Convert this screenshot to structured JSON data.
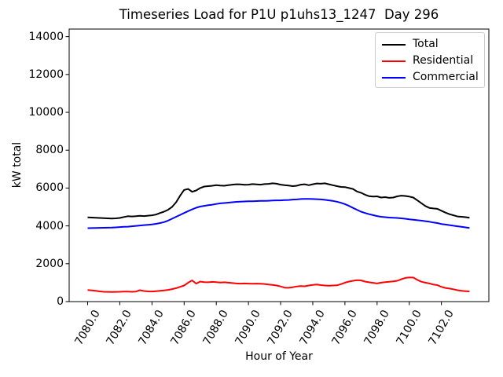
{
  "chart_data": {
    "type": "line",
    "title": "Timeseries Load for P1U p1uhs13_1247  Day 296",
    "xlabel": "Hour of Year",
    "ylabel": "kW total",
    "xlim": [
      7078.85,
      7104.95
    ],
    "ylim": [
      0,
      14400
    ],
    "grid": false,
    "legend_position": "upper right",
    "x_tick_labels": [
      "7080.0",
      "7082.0",
      "7084.0",
      "7086.0",
      "7088.0",
      "7090.0",
      "7092.0",
      "7094.0",
      "7096.0",
      "7098.0",
      "7100.0",
      "7102.0"
    ],
    "x_tick_values": [
      7080,
      7082,
      7084,
      7086,
      7088,
      7090,
      7092,
      7094,
      7096,
      7098,
      7100,
      7102
    ],
    "y_tick_labels": [
      "0",
      "2000",
      "4000",
      "6000",
      "8000",
      "10000",
      "12000",
      "14000"
    ],
    "y_tick_values": [
      0,
      2000,
      4000,
      6000,
      8000,
      10000,
      12000,
      14000
    ],
    "x": [
      7080.0,
      7080.25,
      7080.5,
      7080.75,
      7081.0,
      7081.25,
      7081.5,
      7081.75,
      7082.0,
      7082.25,
      7082.5,
      7082.75,
      7083.0,
      7083.25,
      7083.5,
      7083.75,
      7084.0,
      7084.25,
      7084.5,
      7084.75,
      7085.0,
      7085.25,
      7085.5,
      7085.75,
      7086.0,
      7086.25,
      7086.5,
      7086.75,
      7087.0,
      7087.25,
      7087.5,
      7087.75,
      7088.0,
      7088.25,
      7088.5,
      7088.75,
      7089.0,
      7089.25,
      7089.5,
      7089.75,
      7090.0,
      7090.25,
      7090.5,
      7090.75,
      7091.0,
      7091.25,
      7091.5,
      7091.75,
      7092.0,
      7092.25,
      7092.5,
      7092.75,
      7093.0,
      7093.25,
      7093.5,
      7093.75,
      7094.0,
      7094.25,
      7094.5,
      7094.75,
      7095.0,
      7095.25,
      7095.5,
      7095.75,
      7096.0,
      7096.25,
      7096.5,
      7096.75,
      7097.0,
      7097.25,
      7097.5,
      7097.75,
      7098.0,
      7098.25,
      7098.5,
      7098.75,
      7099.0,
      7099.25,
      7099.5,
      7099.75,
      7100.0,
      7100.25,
      7100.5,
      7100.75,
      7101.0,
      7101.25,
      7101.5,
      7101.75,
      7102.0,
      7102.25,
      7102.5,
      7102.75,
      7103.0,
      7103.25,
      7103.5,
      7103.75
    ],
    "series": [
      {
        "name": "Total",
        "color": "#000000",
        "values": [
          4450,
          4440,
          4430,
          4420,
          4410,
          4400,
          4390,
          4400,
          4420,
          4470,
          4510,
          4500,
          4510,
          4530,
          4520,
          4540,
          4560,
          4600,
          4680,
          4750,
          4850,
          5000,
          5250,
          5600,
          5900,
          5950,
          5800,
          5870,
          6000,
          6080,
          6100,
          6120,
          6150,
          6130,
          6120,
          6150,
          6180,
          6200,
          6190,
          6170,
          6180,
          6210,
          6190,
          6180,
          6210,
          6220,
          6250,
          6230,
          6180,
          6150,
          6130,
          6100,
          6120,
          6180,
          6200,
          6150,
          6200,
          6240,
          6230,
          6250,
          6200,
          6150,
          6100,
          6060,
          6050,
          6000,
          5950,
          5820,
          5750,
          5650,
          5570,
          5550,
          5560,
          5500,
          5520,
          5480,
          5500,
          5560,
          5600,
          5580,
          5550,
          5500,
          5350,
          5200,
          5050,
          4950,
          4920,
          4900,
          4800,
          4700,
          4620,
          4560,
          4500,
          4480,
          4460,
          4430
        ]
      },
      {
        "name": "Residential",
        "color": "#ff0000",
        "values": [
          610,
          590,
          570,
          540,
          520,
          515,
          510,
          515,
          520,
          530,
          525,
          520,
          530,
          600,
          560,
          540,
          535,
          550,
          570,
          590,
          620,
          660,
          710,
          780,
          850,
          1000,
          1120,
          950,
          1060,
          1030,
          1020,
          1040,
          1030,
          1010,
          1020,
          1000,
          980,
          960,
          950,
          960,
          950,
          940,
          950,
          940,
          930,
          900,
          880,
          850,
          800,
          740,
          730,
          760,
          800,
          820,
          810,
          850,
          880,
          900,
          870,
          850,
          840,
          850,
          860,
          920,
          1000,
          1060,
          1100,
          1130,
          1120,
          1060,
          1020,
          990,
          960,
          1000,
          1030,
          1050,
          1070,
          1100,
          1180,
          1250,
          1280,
          1270,
          1150,
          1050,
          1000,
          960,
          900,
          870,
          780,
          720,
          690,
          650,
          600,
          570,
          550,
          540
        ]
      },
      {
        "name": "Commercial",
        "color": "#0000ff",
        "values": [
          3880,
          3885,
          3890,
          3895,
          3900,
          3905,
          3910,
          3920,
          3940,
          3950,
          3960,
          3980,
          4000,
          4020,
          4040,
          4060,
          4080,
          4110,
          4150,
          4200,
          4280,
          4380,
          4480,
          4580,
          4680,
          4780,
          4870,
          4960,
          5020,
          5060,
          5090,
          5120,
          5160,
          5190,
          5210,
          5230,
          5250,
          5270,
          5280,
          5290,
          5300,
          5300,
          5310,
          5320,
          5320,
          5330,
          5340,
          5350,
          5350,
          5360,
          5370,
          5390,
          5400,
          5420,
          5430,
          5430,
          5420,
          5410,
          5400,
          5380,
          5350,
          5320,
          5280,
          5220,
          5150,
          5060,
          4950,
          4850,
          4750,
          4680,
          4620,
          4570,
          4520,
          4480,
          4460,
          4440,
          4430,
          4420,
          4400,
          4380,
          4350,
          4330,
          4300,
          4280,
          4250,
          4220,
          4180,
          4150,
          4100,
          4070,
          4040,
          4010,
          3980,
          3950,
          3920,
          3890
        ]
      }
    ]
  }
}
